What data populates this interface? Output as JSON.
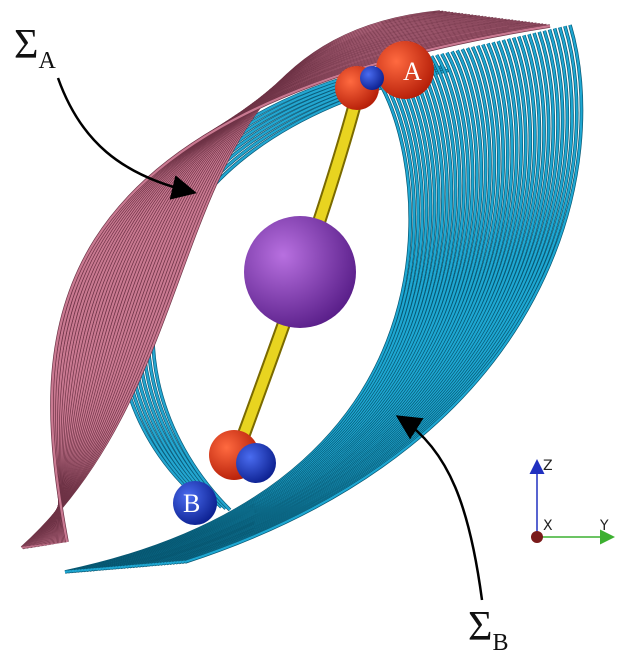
{
  "labels": {
    "sigma_a": {
      "symbol": "Σ",
      "subscript": "A"
    },
    "sigma_b": {
      "symbol": "Σ",
      "subscript": "B"
    }
  },
  "points": {
    "a": "A",
    "b": "B"
  },
  "axes": {
    "z": "Z",
    "x": "X",
    "y": "Y"
  }
}
